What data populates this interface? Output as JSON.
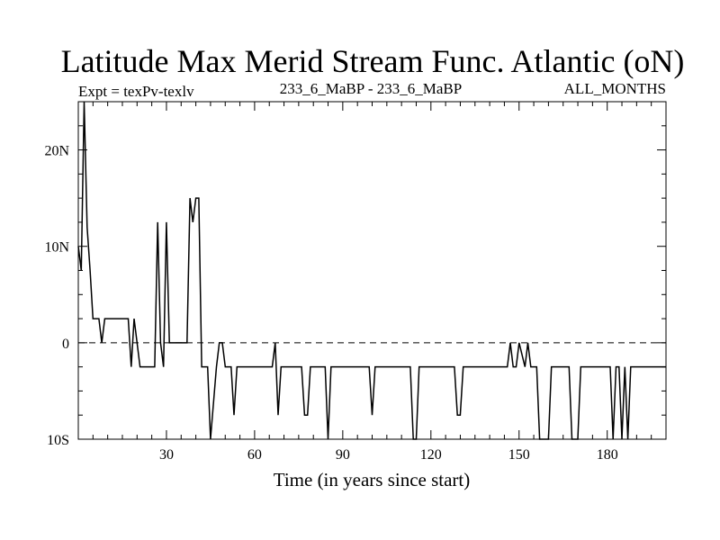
{
  "chart_data": {
    "type": "line",
    "title": "Latitude Max Merid Stream Func. Atlantic (oN)",
    "subtitle_left": "Expt = texPv-texlv",
    "subtitle_center": "233_6_MaBP - 233_6_MaBP",
    "subtitle_right": "ALL_MONTHS",
    "xlabel": "Time (in years since start)",
    "ylabel": "",
    "xlim": [
      0,
      200
    ],
    "ylim": [
      -10,
      25
    ],
    "x_ticks": [
      {
        "value": 30,
        "label": "30"
      },
      {
        "value": 60,
        "label": "60"
      },
      {
        "value": 90,
        "label": "90"
      },
      {
        "value": 120,
        "label": "120"
      },
      {
        "value": 150,
        "label": "150"
      },
      {
        "value": 180,
        "label": "180"
      }
    ],
    "y_ticks": [
      {
        "value": 20,
        "label": "20N"
      },
      {
        "value": 10,
        "label": "10N"
      },
      {
        "value": 0,
        "label": "0"
      },
      {
        "value": -10,
        "label": "10S"
      }
    ],
    "reference_line": {
      "value": 0,
      "style": "dashed"
    },
    "grid": false,
    "series": [
      {
        "name": "latitude",
        "x": [
          0,
          1,
          2,
          3,
          4,
          5,
          7,
          8,
          9,
          10,
          17,
          18,
          19,
          21,
          26,
          27,
          28,
          29,
          30,
          31,
          32,
          37,
          38,
          39,
          40,
          41,
          42,
          44,
          45,
          47,
          48,
          49,
          50,
          52,
          53,
          54,
          55,
          66,
          67,
          68,
          69,
          70,
          76,
          77,
          78,
          79,
          80,
          81,
          84,
          85,
          86,
          87,
          99,
          100,
          101,
          102,
          113,
          114,
          115,
          116,
          128,
          129,
          130,
          131,
          146,
          147,
          148,
          149,
          150,
          152,
          153,
          154,
          156,
          157,
          158,
          160,
          161,
          167,
          168,
          170,
          171,
          181,
          182,
          183,
          184,
          185,
          186,
          187,
          188,
          189,
          200
        ],
        "values": [
          10,
          7.5,
          25,
          12,
          7.5,
          2.5,
          2.5,
          0,
          2.5,
          2.5,
          2.5,
          -2.5,
          2.5,
          -2.5,
          -2.5,
          12.5,
          0,
          -2.5,
          12.5,
          0,
          0,
          0,
          15,
          12.5,
          15,
          15,
          -2.5,
          -2.5,
          -10,
          -2.5,
          0,
          0,
          -2.5,
          -2.5,
          -7.5,
          -2.5,
          -2.5,
          -2.5,
          0,
          -7.5,
          -2.5,
          -2.5,
          -2.5,
          -7.5,
          -7.5,
          -2.5,
          -2.5,
          -2.5,
          -2.5,
          -10,
          -2.5,
          -2.5,
          -2.5,
          -7.5,
          -2.5,
          -2.5,
          -2.5,
          -10,
          -10,
          -2.5,
          -2.5,
          -7.5,
          -7.5,
          -2.5,
          -2.5,
          0,
          -2.5,
          -2.5,
          0,
          -2.5,
          0,
          -2.5,
          -2.5,
          -10,
          -10,
          -10,
          -2.5,
          -2.5,
          -10,
          -10,
          -2.5,
          -2.5,
          -10,
          -2.5,
          -2.5,
          -10,
          -2.5,
          -10,
          -2.5,
          -2.5,
          -2.5
        ]
      }
    ]
  }
}
